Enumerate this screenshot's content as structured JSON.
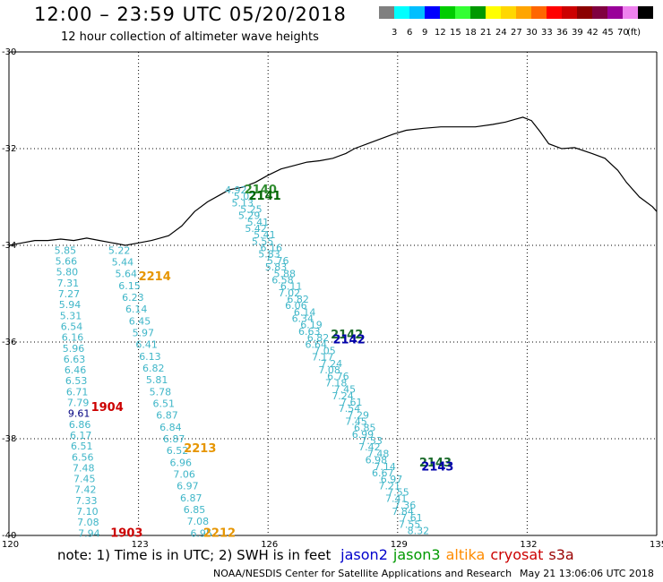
{
  "header": {
    "title": "12:00 – 23:59 UTC 05/20/2018",
    "subtitle": "12 hour collection of altimeter wave heights"
  },
  "colorbar": {
    "colors": [
      "#808080",
      "#00ffff",
      "#00bfff",
      "#0000ff",
      "#00cc00",
      "#33ff33",
      "#009900",
      "#ffff00",
      "#ffd700",
      "#ffa500",
      "#ff6600",
      "#ff0000",
      "#cc0000",
      "#8b0000",
      "#800040",
      "#990099",
      "#ee82ee",
      "#000000"
    ],
    "labels": [
      "3",
      "6",
      "9",
      "12",
      "15",
      "18",
      "21",
      "24",
      "27",
      "30",
      "33",
      "36",
      "39",
      "42",
      "45",
      "70",
      "(ft)"
    ]
  },
  "axes": {
    "lat_labels": [
      "-30",
      "-32",
      "-34",
      "-36",
      "-38",
      "-40"
    ],
    "lat_values": [
      -30,
      -32,
      -34,
      -36,
      -38,
      -40
    ],
    "lon_labels": [
      "120",
      "123",
      "126",
      "129",
      "132",
      "135"
    ],
    "lon_values": [
      120,
      123,
      126,
      129,
      132,
      135
    ]
  },
  "tracks": {
    "cryosat_1904": {
      "color": "#3fb6c8",
      "start": [
        -34.1,
        121.05
      ],
      "end": [
        -39.95,
        121.6
      ],
      "values": [
        "5.85",
        "5.66",
        "5.80",
        "7.31",
        "7.27",
        "5.94",
        "5.31",
        "6.54",
        "6.16",
        "5.96",
        "6.63",
        "6.46",
        "6.53",
        "6.71",
        "7.79",
        "9.61",
        "6.86",
        "6.17",
        "6.51",
        "6.56",
        "7.48",
        "7.45",
        "7.42",
        "7.33",
        "7.10",
        "7.08",
        "7.94"
      ],
      "highlight_value": "9.61",
      "highlight_color": "#000080"
    },
    "altika_2214": {
      "color": "#3fb6c8",
      "start": [
        -34.1,
        122.3
      ],
      "end": [
        -39.95,
        124.2
      ],
      "values": [
        "5.22",
        "5.44",
        "5.64",
        "6.15",
        "6.23",
        "6.14",
        "6.45",
        "5.97",
        "6.41",
        "6.13",
        "6.82",
        "5.81",
        "5.78",
        "6.51",
        "6.87",
        "6.84",
        "6.87",
        "6.52",
        "6.96",
        "7.06",
        "6.97",
        "6.87",
        "6.85",
        "7.08",
        "6.95"
      ]
    },
    "jason3": {
      "color": "#3fb6c8",
      "label_color": "#2e7d8a",
      "values": [
        "4.92",
        "5.07",
        "5.13",
        "5.25",
        "5.29",
        "5.41",
        "5.42",
        "5.41",
        "5.55",
        "6.16",
        "5.83",
        "5.76",
        "5.83",
        "5.88",
        "6.58",
        "6.11",
        "7.02",
        "6.82",
        "6.06",
        "6.14",
        "6.34",
        "6.19",
        "6.63",
        "6.82",
        "6.64",
        "7.05",
        "7.17",
        "7.24",
        "7.08",
        "6.76",
        "7.18",
        "7.45",
        "7.24",
        "7.61",
        "7.54",
        "7.29",
        "7.45",
        "6.85",
        "6.99",
        "7.53",
        "7.42",
        "7.48",
        "6.98",
        "7.14",
        "6.67",
        "6.97",
        "7.21",
        "7.55",
        "7.41",
        "7.36",
        "7.84",
        "7.61",
        "7.55",
        "8.32"
      ]
    }
  },
  "pass_labels": [
    {
      "text": "2140",
      "color": "#2e8b2e"
    },
    {
      "text": "2141",
      "color": "#006400"
    },
    {
      "text": "2214",
      "color": "#e69500"
    },
    {
      "text": "2142",
      "color": "#1a6a2a"
    },
    {
      "text": "2142",
      "color": "#0000aa"
    },
    {
      "text": "1904",
      "color": "#cc0000"
    },
    {
      "text": "2213",
      "color": "#e69500"
    },
    {
      "text": "2143",
      "color": "#1a6a2a"
    },
    {
      "text": "2143",
      "color": "#0000aa"
    },
    {
      "text": "1903",
      "color": "#cc0000"
    },
    {
      "text": "2212",
      "color": "#e69500"
    }
  ],
  "footer": {
    "note": "note:  1) Time is in UTC;  2) SWH is in feet",
    "satellites": [
      {
        "name": "jason2",
        "color": "#0000cc"
      },
      {
        "name": "jason3",
        "color": "#009900"
      },
      {
        "name": "altika",
        "color": "#ff8c00"
      },
      {
        "name": "cryosat",
        "color": "#cc0000"
      },
      {
        "name": "s3a",
        "color": "#990000"
      }
    ],
    "credit": "NOAA/NESDIS Center for Satellite Applications and Research",
    "timestamp": "May 21 13:06:06 UTC 2018"
  }
}
